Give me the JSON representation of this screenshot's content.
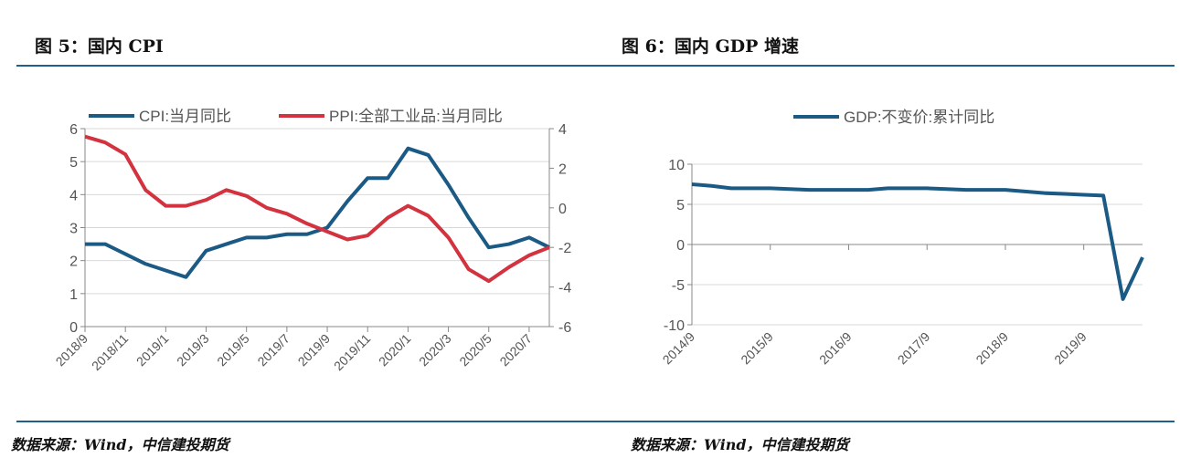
{
  "left_title": "图 5：国内 CPI",
  "right_title": "图 6：国内 GDP 增速",
  "left_source": "数据来源：Wind，中信建投期货",
  "right_source": "数据来源：Wind，中信建投期货",
  "chart_data": [
    {
      "type": "line",
      "x": [
        "2018/9",
        "2018/10",
        "2018/11",
        "2018/12",
        "2019/1",
        "2019/2",
        "2019/3",
        "2019/4",
        "2019/5",
        "2019/6",
        "2019/7",
        "2019/8",
        "2019/9",
        "2019/10",
        "2019/11",
        "2019/12",
        "2020/1",
        "2020/2",
        "2020/3",
        "2020/4",
        "2020/5",
        "2020/6",
        "2020/7",
        "2020/8"
      ],
      "x_tick_labels": [
        "2018/9",
        "2018/11",
        "2019/1",
        "2019/3",
        "2019/5",
        "2019/7",
        "2019/9",
        "2019/11",
        "2020/1",
        "2020/3",
        "2020/5",
        "2020/7"
      ],
      "series": [
        {
          "name": "CPI:当月同比",
          "axis": "left",
          "color": "#1b5a85",
          "values": [
            2.5,
            2.5,
            2.2,
            1.9,
            1.7,
            1.5,
            2.3,
            2.5,
            2.7,
            2.7,
            2.8,
            2.8,
            3.0,
            3.8,
            4.5,
            4.5,
            5.4,
            5.2,
            4.3,
            3.3,
            2.4,
            2.5,
            2.7,
            2.4
          ]
        },
        {
          "name": "PPI:全部工业品:当月同比",
          "axis": "right",
          "color": "#d3323f",
          "values": [
            3.6,
            3.3,
            2.7,
            0.9,
            0.1,
            0.1,
            0.4,
            0.9,
            0.6,
            0.0,
            -0.3,
            -0.8,
            -1.2,
            -1.6,
            -1.4,
            -0.5,
            0.1,
            -0.4,
            -1.5,
            -3.1,
            -3.7,
            -3.0,
            -2.4,
            -2.0
          ]
        }
      ],
      "ylim": [
        0,
        6
      ],
      "yticks": [
        0,
        1,
        2,
        3,
        4,
        5,
        6
      ],
      "y2lim": [
        -6,
        4
      ],
      "y2ticks": [
        -6,
        -4,
        -2,
        0,
        2,
        4
      ],
      "grid": true,
      "legend": "top"
    },
    {
      "type": "line",
      "x": [
        "2014/9",
        "2014/12",
        "2015/3",
        "2015/6",
        "2015/9",
        "2015/12",
        "2016/3",
        "2016/6",
        "2016/9",
        "2016/12",
        "2017/3",
        "2017/6",
        "2017/9",
        "2017/12",
        "2018/3",
        "2018/6",
        "2018/9",
        "2018/12",
        "2019/3",
        "2019/6",
        "2019/9",
        "2019/12",
        "2020/3",
        "2020/6"
      ],
      "x_tick_labels": [
        "2014/9",
        "2015/9",
        "2016/9",
        "2017/9",
        "2018/9",
        "2019/9"
      ],
      "series": [
        {
          "name": "GDP:不变价:累计同比",
          "color": "#1b5a85",
          "values": [
            7.5,
            7.3,
            7.0,
            7.0,
            7.0,
            6.9,
            6.8,
            6.8,
            6.8,
            6.8,
            7.0,
            7.0,
            7.0,
            6.9,
            6.8,
            6.8,
            6.8,
            6.6,
            6.4,
            6.3,
            6.2,
            6.1,
            -6.8,
            -1.6
          ]
        }
      ],
      "ylim": [
        -10,
        10
      ],
      "yticks": [
        -10,
        -5,
        0,
        5,
        10
      ],
      "grid": true,
      "legend": "top"
    }
  ]
}
